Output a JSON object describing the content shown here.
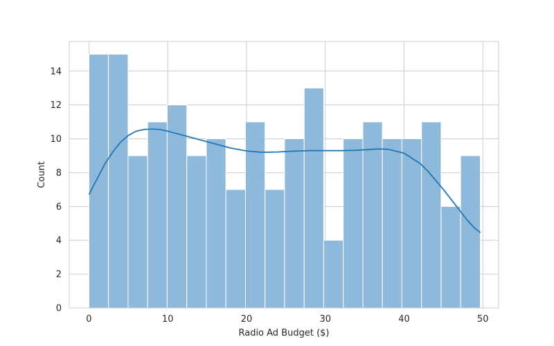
{
  "chart_data": {
    "type": "bar",
    "subtype": "histogram-with-kde",
    "xlabel": "Radio Ad Budget ($)",
    "ylabel": "Count",
    "xlim": [
      -2.5,
      52.0
    ],
    "ylim": [
      0,
      15.75
    ],
    "xticks": [
      0,
      10,
      20,
      30,
      40,
      50
    ],
    "yticks": [
      0,
      2,
      4,
      6,
      8,
      10,
      12,
      14
    ],
    "grid": true,
    "bins": [
      {
        "x0": 0.0,
        "x1": 2.48,
        "count": 15
      },
      {
        "x0": 2.48,
        "x1": 4.97,
        "count": 15
      },
      {
        "x0": 4.97,
        "x1": 7.45,
        "count": 9
      },
      {
        "x0": 7.45,
        "x1": 9.93,
        "count": 11
      },
      {
        "x0": 9.93,
        "x1": 12.42,
        "count": 12
      },
      {
        "x0": 12.42,
        "x1": 14.9,
        "count": 9
      },
      {
        "x0": 14.9,
        "x1": 17.38,
        "count": 10
      },
      {
        "x0": 17.38,
        "x1": 19.87,
        "count": 7
      },
      {
        "x0": 19.87,
        "x1": 22.35,
        "count": 11
      },
      {
        "x0": 22.35,
        "x1": 24.83,
        "count": 7
      },
      {
        "x0": 24.83,
        "x1": 27.32,
        "count": 10
      },
      {
        "x0": 27.32,
        "x1": 29.8,
        "count": 13
      },
      {
        "x0": 29.8,
        "x1": 32.28,
        "count": 4
      },
      {
        "x0": 32.28,
        "x1": 34.77,
        "count": 10
      },
      {
        "x0": 34.77,
        "x1": 37.25,
        "count": 11
      },
      {
        "x0": 37.25,
        "x1": 39.73,
        "count": 10
      },
      {
        "x0": 39.73,
        "x1": 42.22,
        "count": 10
      },
      {
        "x0": 42.22,
        "x1": 44.7,
        "count": 11
      },
      {
        "x0": 44.7,
        "x1": 47.18,
        "count": 6
      },
      {
        "x0": 47.18,
        "x1": 49.67,
        "count": 9
      }
    ],
    "kde": {
      "x": [
        0.0,
        1.0,
        2.0,
        3.0,
        4.0,
        5.0,
        6.0,
        7.0,
        8.0,
        9.0,
        10.0,
        12.0,
        14.0,
        16.0,
        18.0,
        20.0,
        22.0,
        24.0,
        26.0,
        28.0,
        30.0,
        32.0,
        34.0,
        36.0,
        37.0,
        38.0,
        40.0,
        42.0,
        43.0,
        44.0,
        45.0,
        46.0,
        47.0,
        48.0,
        49.0,
        49.7
      ],
      "y": [
        6.7,
        7.6,
        8.5,
        9.2,
        9.8,
        10.2,
        10.45,
        10.55,
        10.58,
        10.55,
        10.45,
        10.2,
        9.95,
        9.7,
        9.45,
        9.28,
        9.2,
        9.22,
        9.27,
        9.3,
        9.3,
        9.3,
        9.32,
        9.38,
        9.4,
        9.38,
        9.15,
        8.55,
        8.1,
        7.55,
        7.0,
        6.4,
        5.8,
        5.2,
        4.7,
        4.45
      ]
    },
    "colors": {
      "bar_fill": "#8fb9da",
      "bar_edge": "#ffffff",
      "kde_line": "#1f77b4",
      "grid": "#cccccc",
      "spine": "#cccccc",
      "text": "#262626"
    }
  }
}
